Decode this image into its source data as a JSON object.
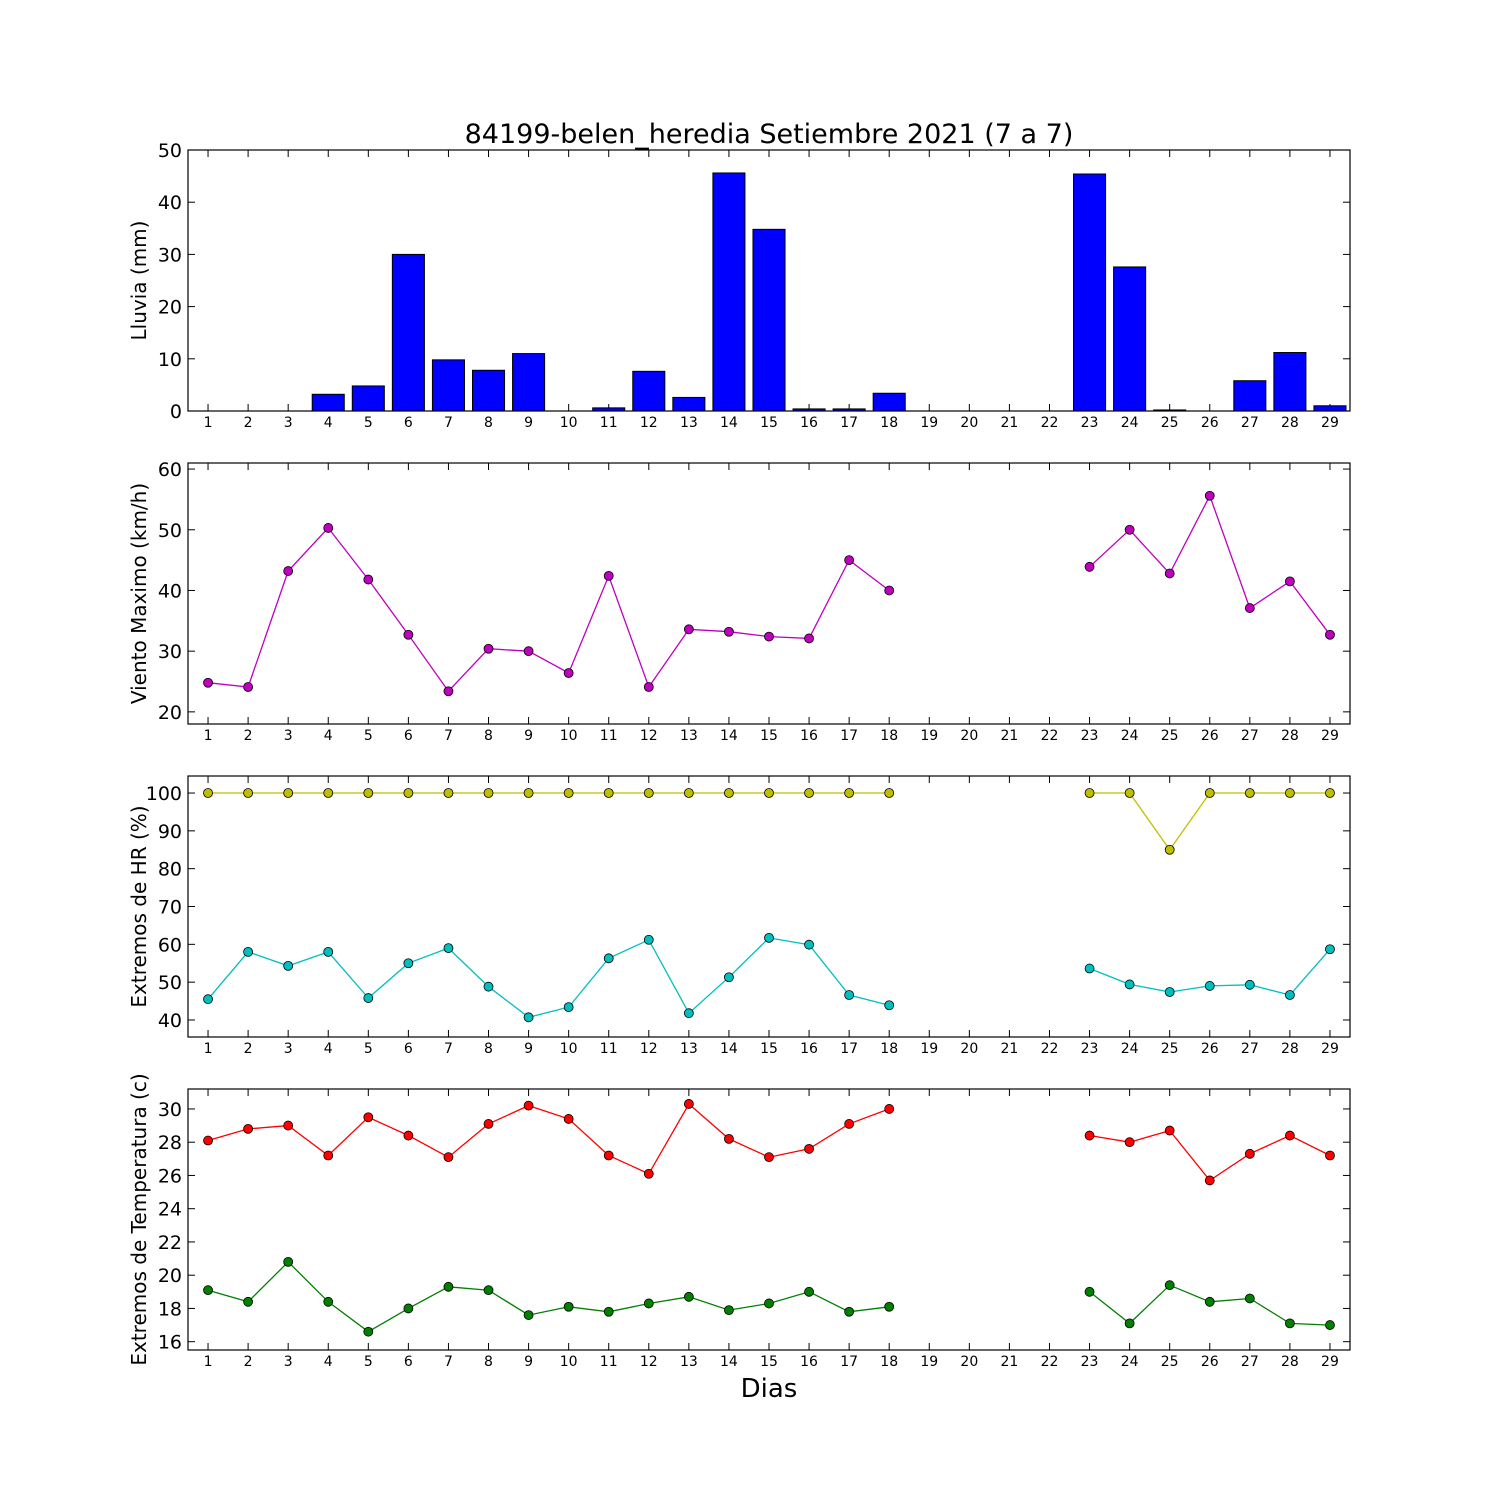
{
  "title": "84199-belen_heredia Setiembre 2021  (7 a 7)",
  "xlabel": "Dias",
  "colors": {
    "bar": "#0000ff",
    "wind": "#bf00bf",
    "hr_max": "#bfbf00",
    "hr_min": "#00bfbf",
    "temp_max": "#ff0000",
    "temp_min": "#008000"
  },
  "chart_data": [
    {
      "type": "bar",
      "ylabel": "Lluvia (mm)",
      "ylim": [
        0,
        50
      ],
      "yticks": [
        0,
        10,
        20,
        30,
        40,
        50
      ],
      "x": [
        1,
        2,
        3,
        4,
        5,
        6,
        7,
        8,
        9,
        10,
        11,
        12,
        13,
        14,
        15,
        16,
        17,
        18,
        19,
        20,
        21,
        22,
        23,
        24,
        25,
        26,
        27,
        28,
        29
      ],
      "values": [
        0,
        0,
        0,
        3.2,
        4.8,
        30.0,
        9.8,
        7.8,
        11.0,
        0,
        0.6,
        7.6,
        2.6,
        45.6,
        34.8,
        0.4,
        0.4,
        3.4,
        null,
        null,
        null,
        null,
        45.4,
        27.6,
        0.2,
        0,
        5.8,
        11.2,
        1.0
      ]
    },
    {
      "type": "line",
      "ylabel": "Viento Maximo (km/h)",
      "ylim": [
        18,
        61
      ],
      "yticks": [
        20,
        30,
        40,
        50,
        60
      ],
      "x": [
        1,
        2,
        3,
        4,
        5,
        6,
        7,
        8,
        9,
        10,
        11,
        12,
        13,
        14,
        15,
        16,
        17,
        18,
        19,
        20,
        21,
        22,
        23,
        24,
        25,
        26,
        27,
        28,
        29
      ],
      "series": [
        {
          "values": [
            24.8,
            24.1,
            43.2,
            50.3,
            41.8,
            32.7,
            23.4,
            30.4,
            30.0,
            26.4,
            42.4,
            24.1,
            33.6,
            33.2,
            32.4,
            32.1,
            45.0,
            40.0,
            null,
            null,
            null,
            null,
            43.9,
            50.0,
            42.8,
            55.6,
            37.1,
            41.5,
            32.7
          ]
        }
      ]
    },
    {
      "type": "line",
      "ylabel": "Extremos de HR (%)",
      "ylim": [
        35.5,
        104.5
      ],
      "yticks": [
        40,
        50,
        60,
        70,
        80,
        90,
        100
      ],
      "x": [
        1,
        2,
        3,
        4,
        5,
        6,
        7,
        8,
        9,
        10,
        11,
        12,
        13,
        14,
        15,
        16,
        17,
        18,
        19,
        20,
        21,
        22,
        23,
        24,
        25,
        26,
        27,
        28,
        29
      ],
      "series": [
        {
          "values": [
            100,
            100,
            100,
            100,
            100,
            100,
            100,
            100,
            100,
            100,
            100,
            100,
            100,
            100,
            100,
            100,
            100,
            100,
            null,
            null,
            null,
            null,
            100,
            100,
            85,
            100,
            100,
            100,
            100
          ]
        },
        {
          "values": [
            45.5,
            58.0,
            54.3,
            58.0,
            45.8,
            55.0,
            59.0,
            48.8,
            40.7,
            43.4,
            56.3,
            61.2,
            41.8,
            51.3,
            61.7,
            59.9,
            46.6,
            43.9,
            null,
            null,
            null,
            null,
            53.6,
            49.4,
            47.4,
            49.0,
            49.3,
            46.6,
            58.7
          ]
        }
      ]
    },
    {
      "type": "line",
      "ylabel": "Extremos de Temperatura (c)",
      "ylim": [
        15.5,
        31.2
      ],
      "yticks": [
        16,
        18,
        20,
        22,
        24,
        26,
        28,
        30
      ],
      "x": [
        1,
        2,
        3,
        4,
        5,
        6,
        7,
        8,
        9,
        10,
        11,
        12,
        13,
        14,
        15,
        16,
        17,
        18,
        19,
        20,
        21,
        22,
        23,
        24,
        25,
        26,
        27,
        28,
        29
      ],
      "series": [
        {
          "values": [
            28.1,
            28.8,
            29.0,
            27.2,
            29.5,
            28.4,
            27.1,
            29.1,
            30.2,
            29.4,
            27.2,
            26.1,
            30.3,
            28.2,
            27.1,
            27.6,
            29.1,
            30.0,
            null,
            null,
            null,
            null,
            28.4,
            28.0,
            28.7,
            25.7,
            27.3,
            28.4,
            27.2
          ]
        },
        {
          "values": [
            19.1,
            18.4,
            20.8,
            18.4,
            16.6,
            18.0,
            19.3,
            19.1,
            17.6,
            18.1,
            17.8,
            18.3,
            18.7,
            17.9,
            18.3,
            19.0,
            17.8,
            18.1,
            null,
            null,
            null,
            null,
            19.0,
            17.1,
            19.4,
            18.4,
            18.6,
            17.1,
            17.0
          ]
        }
      ]
    }
  ]
}
